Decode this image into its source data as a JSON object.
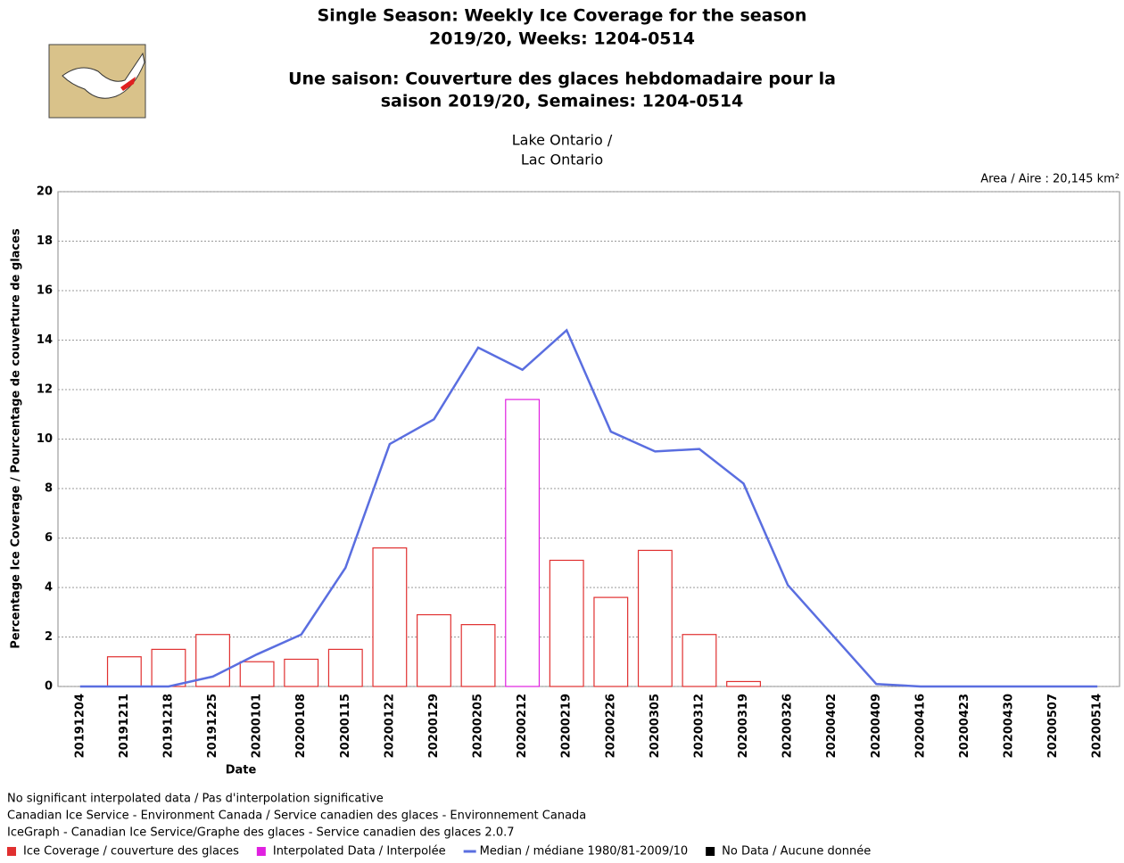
{
  "chart_data": {
    "type": "bar",
    "title": [
      "Single Season: Weekly Ice Coverage for the season",
      "2019/20, Weeks: 1204-0514",
      "Une saison: Couverture des glaces hebdomadaire pour la",
      "saison 2019/20, Semaines: 1204-0514"
    ],
    "subtitle": [
      "Lake Ontario /",
      "Lac Ontario"
    ],
    "area_label": "Area / Aire : 20,145 km²",
    "y_label": "Percentage Ice Coverage / Pourcentage de couverture de glaces",
    "x_label": "Date",
    "categories": [
      "20191204",
      "20191211",
      "20191218",
      "20191225",
      "20200101",
      "20200108",
      "20200115",
      "20200122",
      "20200129",
      "20200205",
      "20200212",
      "20200219",
      "20200226",
      "20200305",
      "20200312",
      "20200319",
      "20200326",
      "20200402",
      "20200409",
      "20200416",
      "20200423",
      "20200430",
      "20200507",
      "20200514"
    ],
    "series": [
      {
        "name": "Ice Coverage / couverture des glaces",
        "type": "bar",
        "color": "#e03030",
        "values": [
          0,
          1.2,
          1.5,
          2.1,
          1.0,
          1.1,
          1.5,
          5.6,
          2.9,
          2.5,
          null,
          5.1,
          3.6,
          5.5,
          2.1,
          0.2,
          0,
          0,
          0,
          0,
          0,
          0,
          0,
          0
        ]
      },
      {
        "name": "Interpolated Data / Interpolée",
        "type": "bar",
        "color": "#e020e0",
        "values": [
          null,
          null,
          null,
          null,
          null,
          null,
          null,
          null,
          null,
          null,
          11.6,
          null,
          null,
          null,
          null,
          null,
          null,
          null,
          null,
          null,
          null,
          null,
          null,
          null
        ]
      },
      {
        "name": "Median / médiane 1980/81-2009/10",
        "type": "line",
        "color": "#5a6ee0",
        "values": [
          0,
          0,
          0,
          0.4,
          1.3,
          2.1,
          4.8,
          9.8,
          10.8,
          13.7,
          12.8,
          14.4,
          10.3,
          9.5,
          9.6,
          8.2,
          4.1,
          2.1,
          0.1,
          0,
          0,
          0,
          0,
          0
        ]
      }
    ],
    "legend_extra": "No Data / Aucune donnée",
    "ylim": [
      0,
      20
    ],
    "yticks": [
      0,
      2,
      4,
      6,
      8,
      10,
      12,
      14,
      16,
      18,
      20
    ],
    "grid": true,
    "notes": [
      "No significant interpolated data / Pas d'interpolation significative",
      "Canadian Ice Service - Environment Canada / Service canadien des glaces - Environnement Canada",
      "IceGraph - Canadian Ice Service/Graphe des glaces - Service canadien des glaces 2.0.7"
    ]
  }
}
